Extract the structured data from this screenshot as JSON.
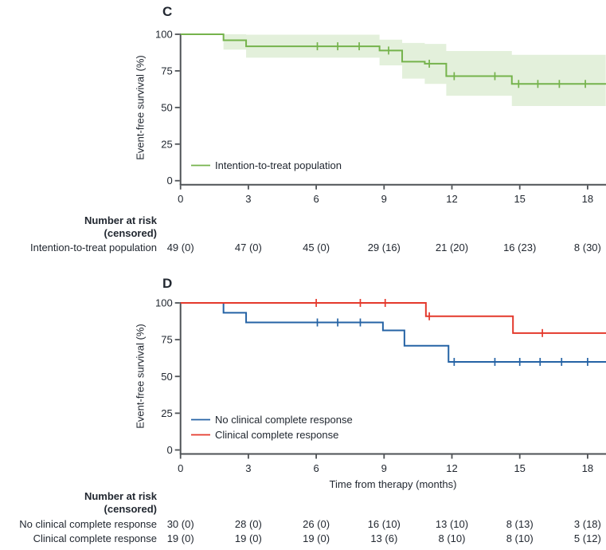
{
  "figure": {
    "background": "#ffffff",
    "text_color": "#222831",
    "axis_color": "#4e5256"
  },
  "at_risk_header": {
    "line1": "Number at risk",
    "line2": "(censored)"
  },
  "chart_data": [
    {
      "type": "line",
      "panel": "C",
      "title": "C",
      "ylabel": "Event-free survival (%)",
      "xlabel": "",
      "xlim": [
        0,
        18.8
      ],
      "ylim": [
        0,
        100
      ],
      "xticks": [
        0,
        3,
        6,
        9,
        12,
        15,
        18
      ],
      "yticks": [
        0,
        25,
        50,
        75,
        100
      ],
      "grid": false,
      "legend_position": "inside-lower-left",
      "series": [
        {
          "name": "Intention-to-treat population",
          "color": "#75b34c",
          "step_points": [
            [
              0,
              100
            ],
            [
              1.9,
              95.9
            ],
            [
              2.9,
              91.8
            ],
            [
              8.8,
              88.9
            ],
            [
              9.8,
              81.3
            ],
            [
              10.8,
              79.9
            ],
            [
              11.75,
              71.4
            ],
            [
              14.65,
              66.1
            ]
          ],
          "censor_marks": [
            [
              6.05,
              91.8
            ],
            [
              6.95,
              91.8
            ],
            [
              7.9,
              91.8
            ],
            [
              9.2,
              88.9
            ],
            [
              11.0,
              79.9
            ],
            [
              12.1,
              71.4
            ],
            [
              13.9,
              71.4
            ],
            [
              14.95,
              66.1
            ],
            [
              15.8,
              66.1
            ],
            [
              16.75,
              66.1
            ],
            [
              17.9,
              66.1
            ]
          ],
          "ci_band": {
            "color": "#75b34c",
            "opacity": 0.2,
            "steps": [
              [
                1.9,
                100,
                89.5
              ],
              [
                2.9,
                99.7,
                84.0
              ],
              [
                8.8,
                96.3,
                78.8
              ],
              [
                9.8,
                94.1,
                69.7
              ],
              [
                10.8,
                93.4,
                66.1
              ],
              [
                11.75,
                88.6,
                58.0
              ],
              [
                14.65,
                86.0,
                51.0
              ]
            ]
          }
        }
      ],
      "at_risk_rows": [
        {
          "label": "Intention-to-treat population",
          "values": [
            "49 (0)",
            "47 (0)",
            "45 (0)",
            "29 (16)",
            "21 (20)",
            "16 (23)",
            "8 (30)"
          ]
        }
      ]
    },
    {
      "type": "line",
      "panel": "D",
      "title": "D",
      "ylabel": "Event-free survival (%)",
      "xlabel": "Time from therapy (months)",
      "xlim": [
        0,
        18.8
      ],
      "ylim": [
        0,
        100
      ],
      "xticks": [
        0,
        3,
        6,
        9,
        12,
        15,
        18
      ],
      "yticks": [
        0,
        25,
        50,
        75,
        100
      ],
      "grid": false,
      "legend_position": "inside-lower-left",
      "series": [
        {
          "name": "No clinical complete response",
          "color": "#2563a5",
          "step_points": [
            [
              0,
              100
            ],
            [
              1.9,
              93.3
            ],
            [
              2.9,
              86.7
            ],
            [
              8.95,
              81.3
            ],
            [
              9.9,
              70.9
            ],
            [
              11.85,
              59.9
            ]
          ],
          "censor_marks": [
            [
              6.05,
              86.7
            ],
            [
              6.95,
              86.7
            ],
            [
              7.95,
              86.7
            ],
            [
              12.1,
              59.9
            ],
            [
              13.9,
              59.9
            ],
            [
              15.0,
              59.9
            ],
            [
              15.9,
              59.9
            ],
            [
              16.85,
              59.9
            ],
            [
              18.0,
              59.9
            ]
          ]
        },
        {
          "name": "Clinical complete response",
          "color": "#e4392c",
          "step_points": [
            [
              0,
              100
            ],
            [
              10.85,
              90.9
            ],
            [
              14.7,
              79.5
            ]
          ],
          "censor_marks": [
            [
              6.0,
              100
            ],
            [
              7.95,
              100
            ],
            [
              9.05,
              100
            ],
            [
              11.0,
              90.9
            ],
            [
              16.0,
              79.5
            ]
          ]
        }
      ],
      "at_risk_rows": [
        {
          "label": "No clinical complete response",
          "values": [
            "30 (0)",
            "28 (0)",
            "26 (0)",
            "16 (10)",
            "13 (10)",
            "8 (13)",
            "3 (18)"
          ]
        },
        {
          "label": "Clinical complete response",
          "values": [
            "19 (0)",
            "19 (0)",
            "19 (0)",
            "13 (6)",
            "8 (10)",
            "8 (10)",
            "5 (12)"
          ]
        }
      ]
    }
  ]
}
